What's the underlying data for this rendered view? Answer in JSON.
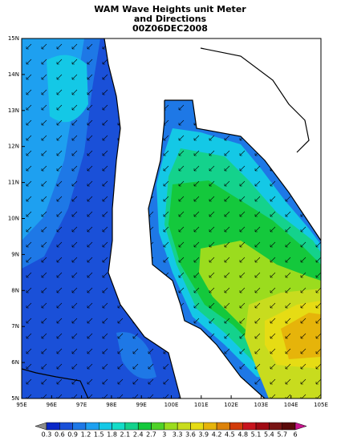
{
  "map": {
    "title": [
      "WAM Wave Heights unit Meter",
      "and Directions",
      "00Z06DEC2008"
    ],
    "xlim": [
      95,
      105
    ],
    "ylim": [
      5,
      15
    ],
    "xticks": [
      {
        "value": 95,
        "label": "95E"
      },
      {
        "value": 96,
        "label": "96E"
      },
      {
        "value": 97,
        "label": "97E"
      },
      {
        "value": 98,
        "label": "98E"
      },
      {
        "value": 99,
        "label": "99E"
      },
      {
        "value": 100,
        "label": "100E"
      },
      {
        "value": 101,
        "label": "101E"
      },
      {
        "value": 102,
        "label": "102E"
      },
      {
        "value": 103,
        "label": "103E"
      },
      {
        "value": 104,
        "label": "104E"
      },
      {
        "value": 105,
        "label": "105E"
      }
    ],
    "yticks": [
      {
        "value": 5,
        "label": "5N"
      },
      {
        "value": 6,
        "label": "6N"
      },
      {
        "value": 7,
        "label": "7N"
      },
      {
        "value": 8,
        "label": "8N"
      },
      {
        "value": 9,
        "label": "9N"
      },
      {
        "value": 10,
        "label": "10N"
      },
      {
        "value": 11,
        "label": "11N"
      },
      {
        "value": 12,
        "label": "12N"
      },
      {
        "value": 13,
        "label": "13N"
      },
      {
        "value": 14,
        "label": "14N"
      },
      {
        "value": 15,
        "label": "15N"
      }
    ],
    "colorbar": {
      "levels": [
        0.3,
        0.6,
        0.9,
        1.2,
        1.5,
        1.8,
        2.1,
        2.4,
        2.7,
        3,
        3.3,
        3.6,
        3.9,
        4.2,
        4.5,
        4.8,
        5.1,
        5.4,
        5.7,
        6
      ],
      "colors": [
        "#8c8c8c",
        "#0a28c8",
        "#1a50d8",
        "#1e78e6",
        "#1ea0f0",
        "#14c8e6",
        "#14dcc8",
        "#14d28c",
        "#14c83c",
        "#50d228",
        "#9bdc1e",
        "#c8dc1e",
        "#e6dc14",
        "#e6b40a",
        "#dc820a",
        "#d23c0a",
        "#c8141e",
        "#a00a14",
        "#781414",
        "#5a0a0a",
        "#c8148c"
      ]
    }
  }
}
